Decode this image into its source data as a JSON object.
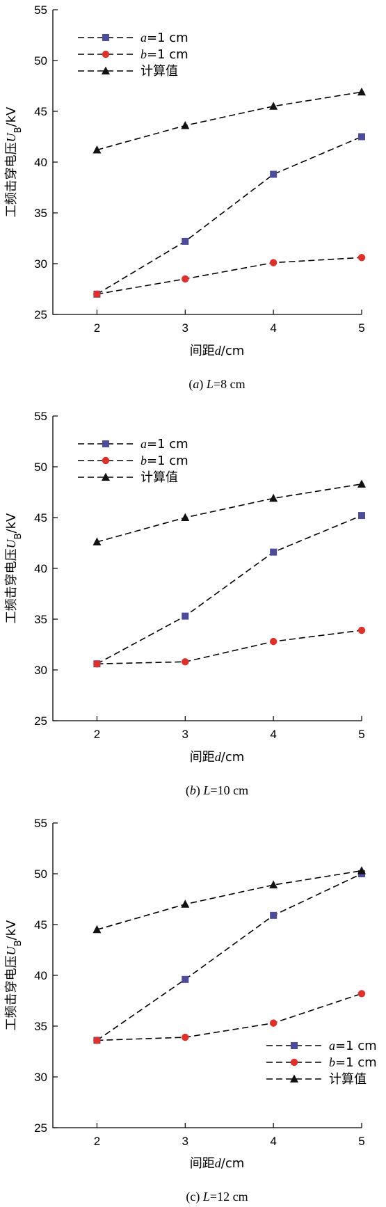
{
  "chart_data": [
    {
      "type": "line",
      "caption": "(a) L=8 cm",
      "xlabel": "间距d/cm",
      "ylabel": "工频击穿电压U_B/kV",
      "x": [
        2,
        3,
        4,
        5
      ],
      "xlim": [
        1.5,
        5
      ],
      "ylim": [
        25,
        55
      ],
      "xticks": [
        "2",
        "3",
        "4",
        "5"
      ],
      "yticks": [
        "25",
        "30",
        "35",
        "40",
        "45",
        "50",
        "55"
      ],
      "legend_position": "top-left",
      "series": [
        {
          "name": "a=1 cm",
          "marker": "square",
          "color": "#4c4c9a",
          "values": [
            27.0,
            32.2,
            38.8,
            42.5
          ]
        },
        {
          "name": "b=1 cm",
          "marker": "circle",
          "color": "#e0302a",
          "values": [
            27.0,
            28.5,
            30.1,
            30.6
          ]
        },
        {
          "name": "计算值",
          "marker": "triangle",
          "color": "#111111",
          "values": [
            41.2,
            43.6,
            45.5,
            46.9
          ]
        }
      ]
    },
    {
      "type": "line",
      "caption": "(b) L=10 cm",
      "xlabel": "间距d/cm",
      "ylabel": "工频击穿电压U_B/kV",
      "x": [
        2,
        3,
        4,
        5
      ],
      "xlim": [
        1.5,
        5
      ],
      "ylim": [
        25,
        55
      ],
      "xticks": [
        "2",
        "3",
        "4",
        "5"
      ],
      "yticks": [
        "25",
        "30",
        "35",
        "40",
        "45",
        "50",
        "55"
      ],
      "legend_position": "top-left",
      "series": [
        {
          "name": "a=1 cm",
          "marker": "square",
          "color": "#4c4c9a",
          "values": [
            30.6,
            35.3,
            41.6,
            45.2
          ]
        },
        {
          "name": "b=1 cm",
          "marker": "circle",
          "color": "#e0302a",
          "values": [
            30.6,
            30.8,
            32.8,
            33.9
          ]
        },
        {
          "name": "计算值",
          "marker": "triangle",
          "color": "#111111",
          "values": [
            42.6,
            45.0,
            46.9,
            48.3
          ]
        }
      ]
    },
    {
      "type": "line",
      "caption": "(c) L=12 cm",
      "xlabel": "间距d/cm",
      "ylabel": "工频击穿电压U_B/kV",
      "x": [
        2,
        3,
        4,
        5
      ],
      "xlim": [
        1.5,
        5
      ],
      "ylim": [
        25,
        55
      ],
      "xticks": [
        "2",
        "3",
        "4",
        "5"
      ],
      "yticks": [
        "25",
        "30",
        "35",
        "40",
        "45",
        "50",
        "55"
      ],
      "legend_position": "bottom-right",
      "series": [
        {
          "name": "a=1 cm",
          "marker": "square",
          "color": "#4c4c9a",
          "values": [
            33.6,
            39.6,
            45.9,
            50.0
          ]
        },
        {
          "name": "b=1 cm",
          "marker": "circle",
          "color": "#e0302a",
          "values": [
            33.6,
            33.9,
            35.3,
            38.2
          ]
        },
        {
          "name": "计算值",
          "marker": "triangle",
          "color": "#111111",
          "values": [
            44.5,
            47.0,
            48.9,
            50.3
          ]
        }
      ]
    }
  ]
}
